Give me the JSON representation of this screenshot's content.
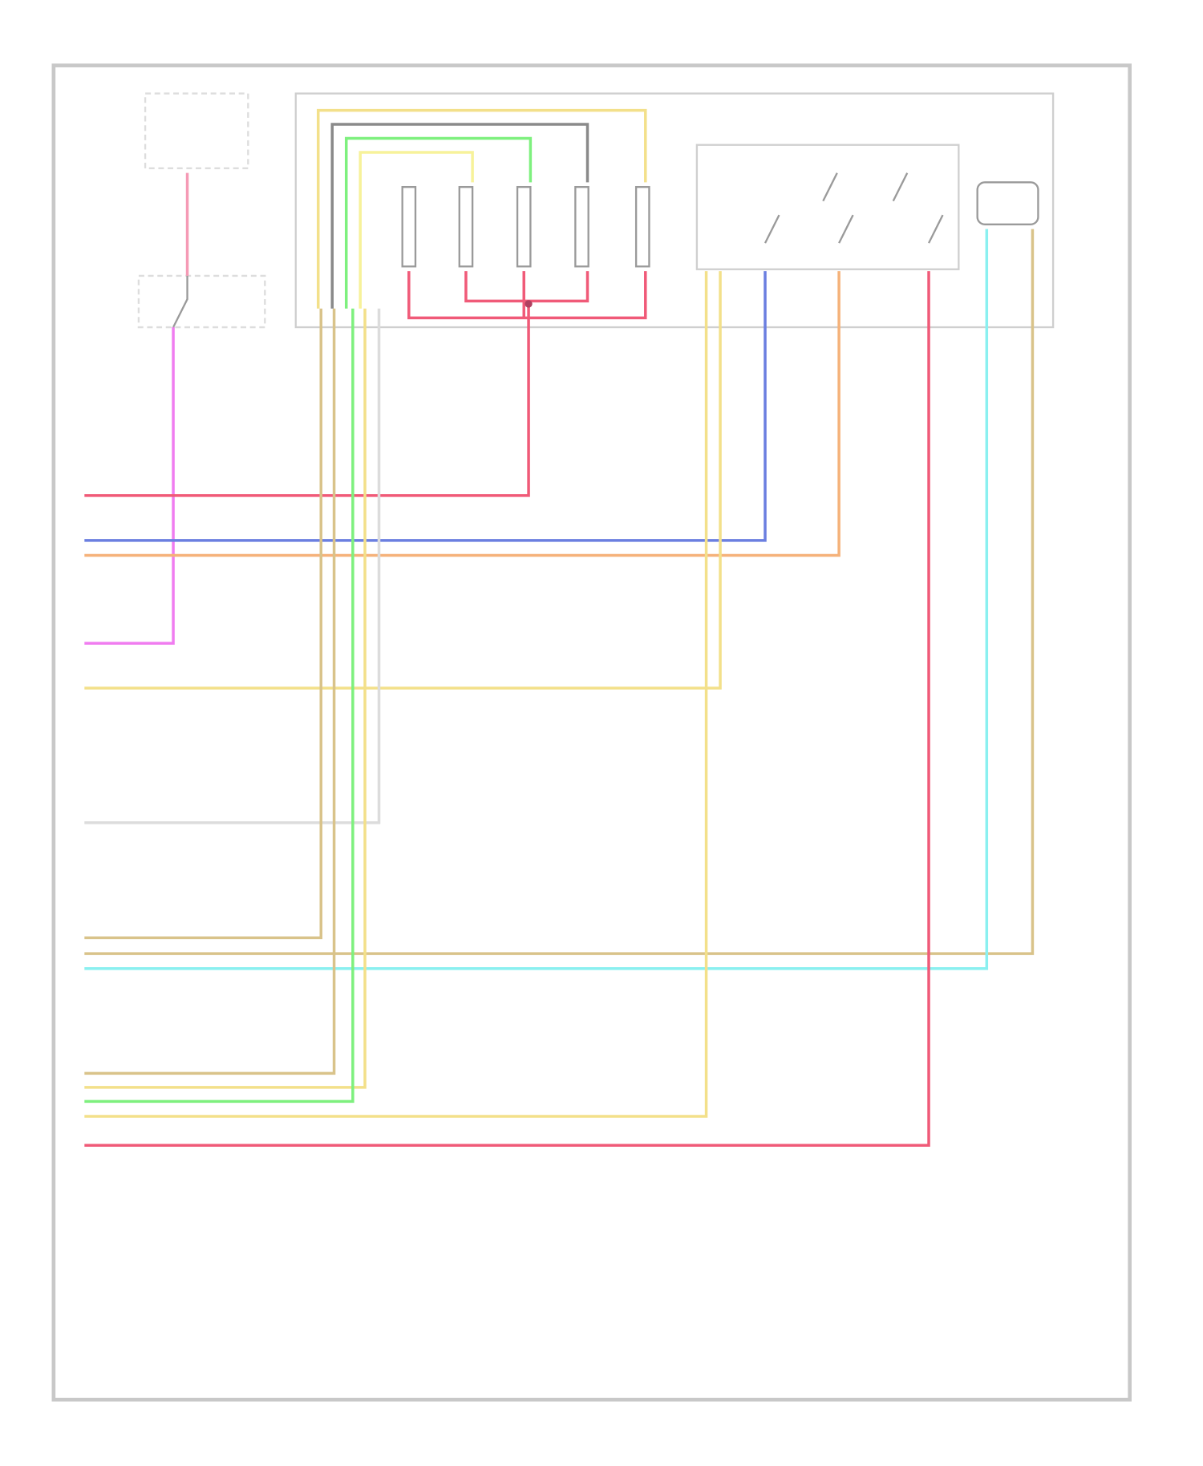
{
  "diagram": {
    "type": "wiring-diagram",
    "frame_color": "#c8c8c8",
    "wire_colors": {
      "red": "#f05a78",
      "blue": "#6b7fe0",
      "orange": "#f5b27a",
      "magenta": "#f07cf0",
      "pink": "#f59ab5",
      "yellow": "#f3e08a",
      "light_yellow": "#f7f29a",
      "green": "#7ef07e",
      "gray": "#8a8a8a",
      "light_gray": "#dcdcdc",
      "tan": "#d9c38a",
      "cyan": "#8af0f0"
    }
  }
}
